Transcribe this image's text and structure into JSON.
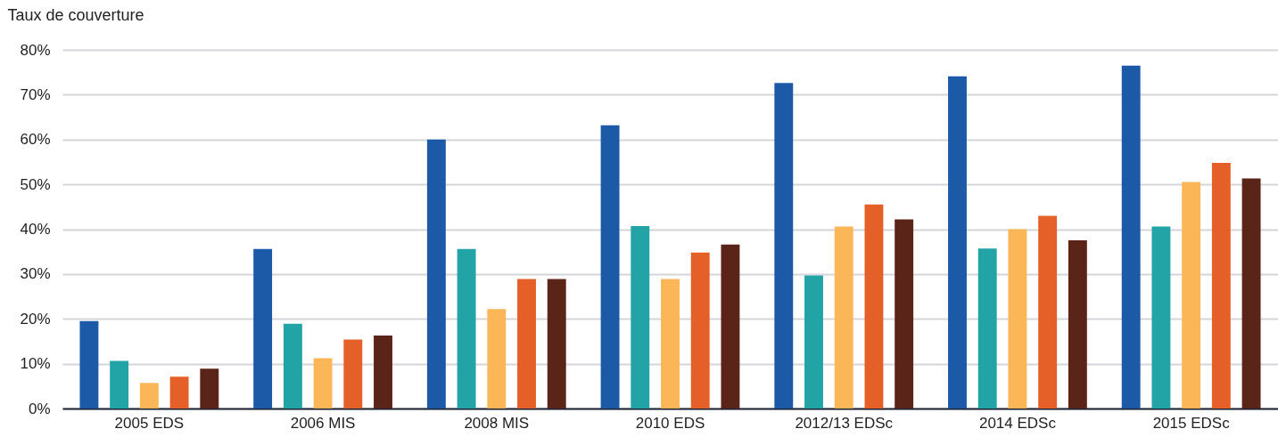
{
  "chart_data": {
    "type": "bar",
    "ylabel": "Taux de couverture",
    "categories": [
      "2005 EDS",
      "2006 MIS",
      "2008 MIS",
      "2010 EDS",
      "2012/13 EDSc",
      "2014 EDSc",
      "2015 EDSc"
    ],
    "series": [
      {
        "color": "#1c5aa8",
        "values": [
          19.5,
          35.6,
          60.0,
          63.2,
          72.6,
          74.1,
          76.5
        ]
      },
      {
        "color": "#22a3a6",
        "values": [
          10.6,
          18.9,
          35.6,
          40.7,
          29.7,
          35.7,
          40.6
        ]
      },
      {
        "color": "#fbb658",
        "values": [
          5.7,
          11.2,
          22.2,
          28.9,
          40.6,
          40.0,
          50.5
        ]
      },
      {
        "color": "#e46028",
        "values": [
          7.1,
          15.4,
          28.9,
          34.8,
          45.5,
          43.0,
          54.8
        ]
      },
      {
        "color": "#5a2518",
        "values": [
          8.9,
          16.3,
          28.9,
          36.6,
          42.2,
          37.5,
          51.3
        ]
      }
    ],
    "ylim": [
      0,
      80
    ],
    "yticks": [
      {
        "value": 0,
        "label": "0%"
      },
      {
        "value": 10,
        "label": "10%"
      },
      {
        "value": 20,
        "label": "20%"
      },
      {
        "value": 30,
        "label": "30%"
      },
      {
        "value": 40,
        "label": "40%"
      },
      {
        "value": 50,
        "label": "50%"
      },
      {
        "value": 60,
        "label": "60%"
      },
      {
        "value": 70,
        "label": "70%"
      },
      {
        "value": 80,
        "label": "80%"
      }
    ],
    "grid": "y",
    "legend": false
  }
}
